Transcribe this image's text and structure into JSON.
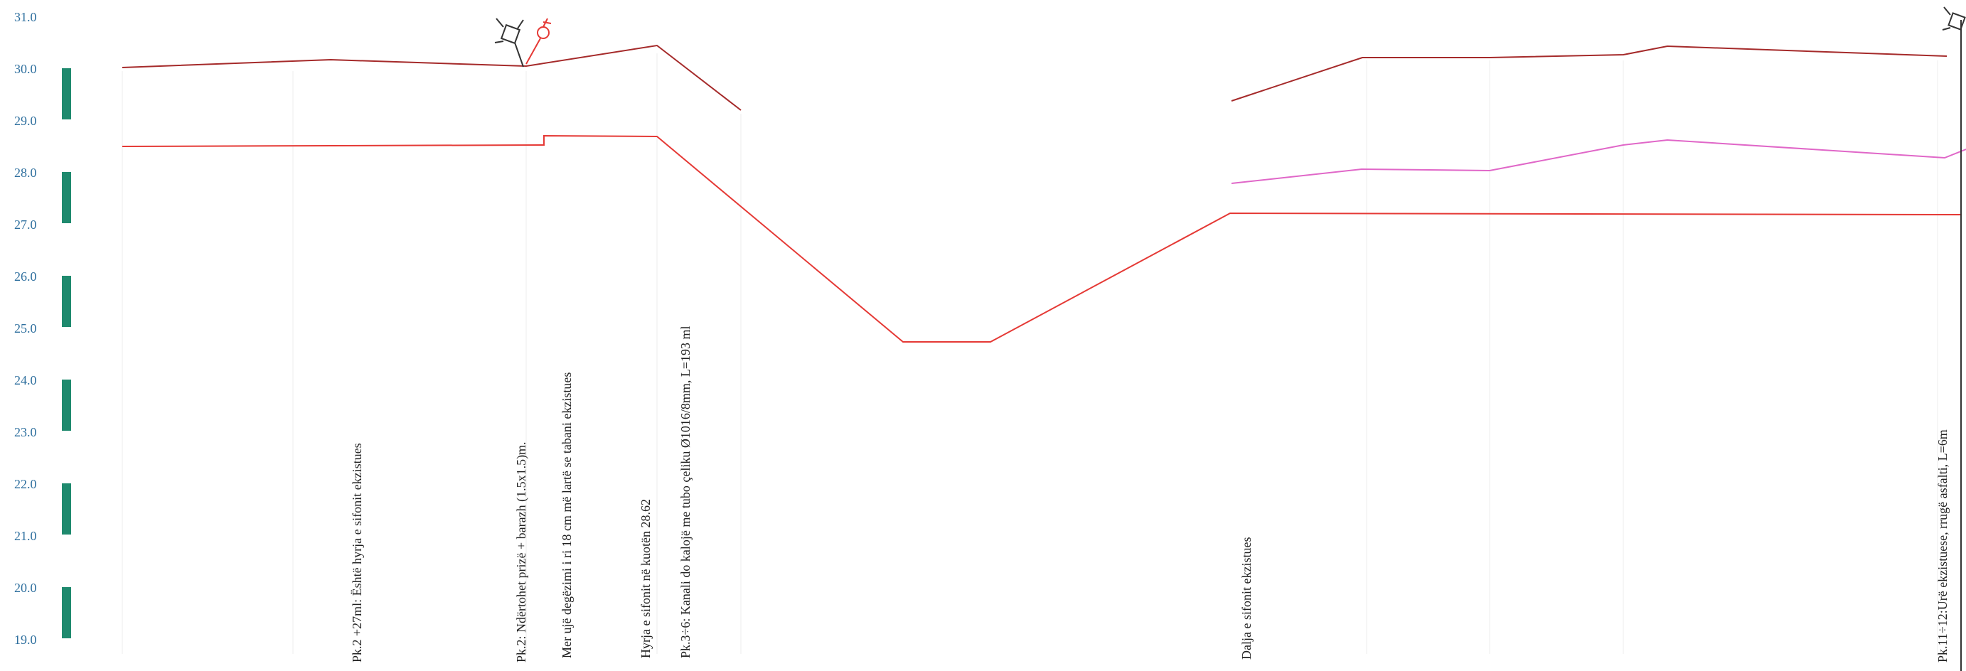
{
  "colors": {
    "ground_line": "#a52a2a",
    "bed_line": "#e53935",
    "water_line": "#e067c8",
    "scale_bar": "#1f8a6e",
    "elevation_text": "#2e6f9e",
    "note_text": "#222222",
    "symbol_dark": "#333333",
    "symbol_red": "#e53935"
  },
  "elevation_axis": {
    "ticks": [
      "31.0",
      "30.0",
      "29.0",
      "28.0",
      "27.0",
      "26.0",
      "25.0",
      "24.0",
      "23.0",
      "22.0",
      "21.0",
      "20.0",
      "19.0"
    ]
  },
  "annotations": [
    {
      "id": "pk2-27",
      "text": "Pk.2 +27ml: Është hyrja e sifonit ekzistues"
    },
    {
      "id": "pk2-prize",
      "text": "Pk.2: Ndërtohet prizë + barazh (1.5x1.5)m."
    },
    {
      "id": "water-intake",
      "text": "Mer ujë degëzimi i ri 18 cm më lartë se tabani ekzistues"
    },
    {
      "id": "siphon-entry",
      "text": "Hyrja e sifonit në kuotën 28.62"
    },
    {
      "id": "pk3-6",
      "text": "Pk.3÷6: Kanali do kalojë me tubo çeliku Ø1016/8mm, L=193 ml"
    },
    {
      "id": "siphon-exit",
      "text": "Dalja e sifonit ekzistues"
    },
    {
      "id": "pk11-12",
      "text": "Pk.11÷12:Urë ekzistuese, rrugë asfalti, L=6m"
    }
  ],
  "symbols": [
    "valve-icon",
    "female-symbol-icon",
    "valve-icon"
  ]
}
